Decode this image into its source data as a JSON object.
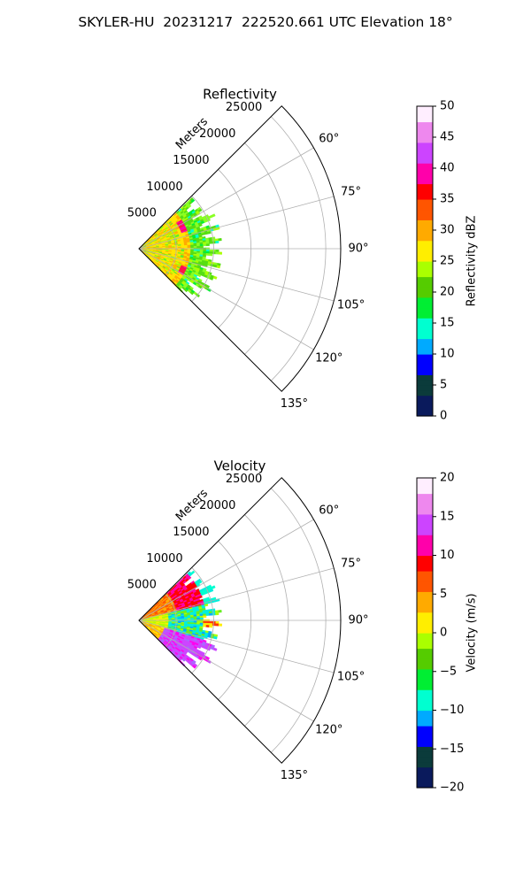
{
  "suptitle": "SKYLER-HU  20231217  222520.661 UTC Elevation 18°",
  "chart_data": [
    {
      "type": "heatmap",
      "title": "Reflectivity",
      "radial_axis_label": "Meters",
      "radial_ticks": [
        "5000",
        "10000",
        "15000",
        "20000",
        "25000"
      ],
      "radial_tick_values": [
        5000,
        10000,
        15000,
        20000,
        25000
      ],
      "r_max": 27000,
      "angle_ticks": [
        "60°",
        "75°",
        "90°",
        "105°",
        "120°",
        "135°"
      ],
      "angle_tick_values": [
        60,
        75,
        90,
        105,
        120,
        135
      ],
      "sector_range_deg": [
        45,
        135
      ],
      "grid": true,
      "data_extent_m": 11000,
      "colorbar": {
        "label": "Reflectivity dBZ",
        "ticks": [
          "0",
          "5",
          "10",
          "15",
          "20",
          "25",
          "30",
          "35",
          "40",
          "45",
          "50"
        ],
        "range": [
          0,
          50
        ],
        "stops": [
          "#0a1a5c",
          "#0b3b3b",
          "#0000ff",
          "#00aaff",
          "#00ffd0",
          "#00ee33",
          "#55cc00",
          "#aaff00",
          "#ffee00",
          "#ffaa00",
          "#ff5500",
          "#ff0000",
          "#ff00aa",
          "#cc44ff",
          "#ee88ee",
          "#ffeeff"
        ]
      },
      "features": [
        {
          "desc": "broad green echo",
          "value": 20,
          "color": "#66ee22"
        },
        {
          "desc": "near-range yellow/orange core",
          "value": 27,
          "color": "#ffdd00"
        },
        {
          "desc": "red/magenta band",
          "value": 38,
          "color": "#ff2266"
        }
      ]
    },
    {
      "type": "heatmap",
      "title": "Velocity",
      "radial_axis_label": "Meters",
      "radial_ticks": [
        "5000",
        "10000",
        "15000",
        "20000",
        "25000"
      ],
      "radial_tick_values": [
        5000,
        10000,
        15000,
        20000,
        25000
      ],
      "r_max": 27000,
      "angle_ticks": [
        "60°",
        "75°",
        "90°",
        "105°",
        "120°",
        "135°"
      ],
      "angle_tick_values": [
        60,
        75,
        90,
        105,
        120,
        135
      ],
      "sector_range_deg": [
        45,
        135
      ],
      "grid": true,
      "data_extent_m": 11000,
      "colorbar": {
        "label": "Velocity (m/s)",
        "ticks": [
          "−20",
          "−15",
          "−10",
          "−5",
          "0",
          "5",
          "10",
          "15",
          "20"
        ],
        "range": [
          -20,
          20
        ],
        "stops": [
          "#0a1a5c",
          "#0b3b3b",
          "#0000ff",
          "#00aaff",
          "#00ffd0",
          "#00ee33",
          "#55cc00",
          "#aaff00",
          "#ffee00",
          "#ffaa00",
          "#ff5500",
          "#ff0000",
          "#ff00aa",
          "#cc44ff",
          "#ee88ee",
          "#ffeeff"
        ]
      },
      "features": [
        {
          "desc": "north-side outbound band",
          "value": 10,
          "color": "#ff2222"
        },
        {
          "desc": "central cyan inbound",
          "value": -11,
          "color": "#00eedd"
        },
        {
          "desc": "south-side magenta band",
          "value": 15,
          "color": "#cc44ff"
        },
        {
          "desc": "green/yellow near-zero",
          "value": -3,
          "color": "#88ee22"
        }
      ]
    }
  ]
}
